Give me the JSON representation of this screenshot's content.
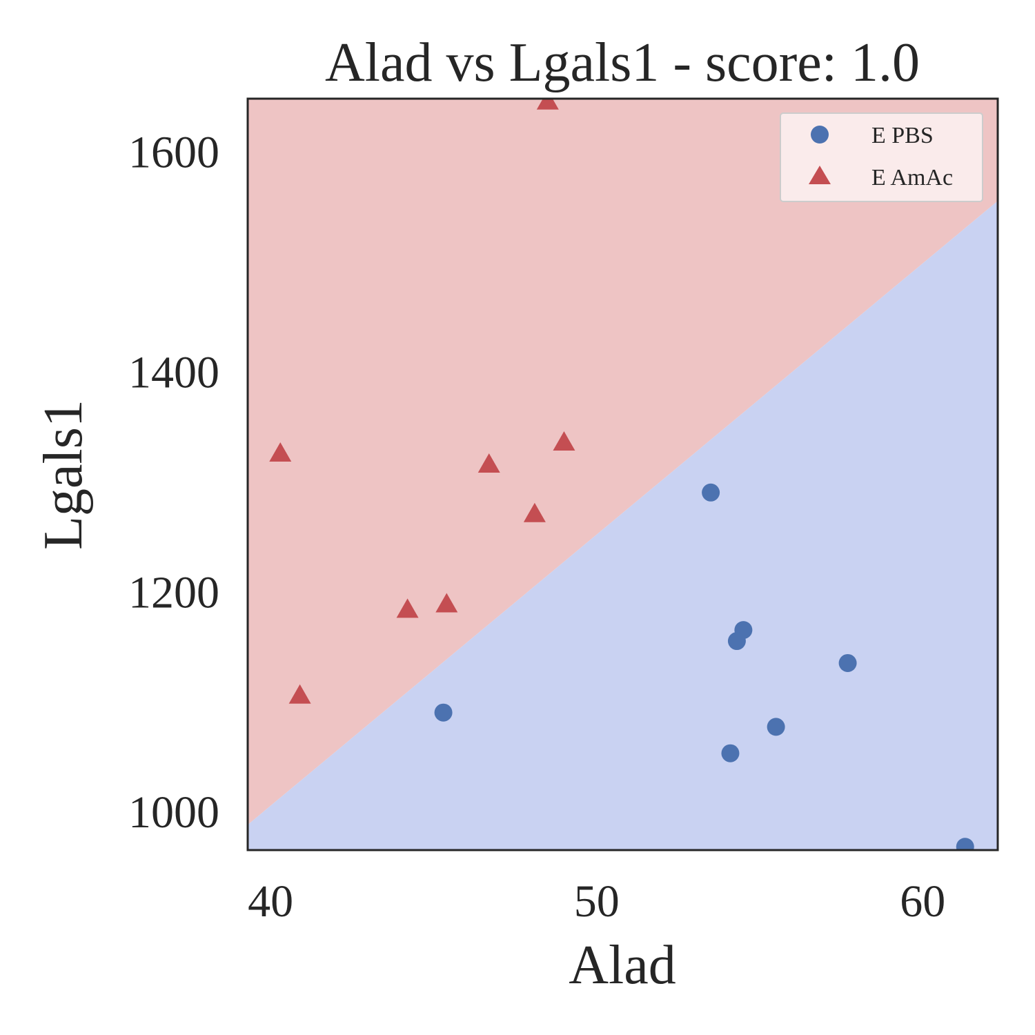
{
  "chart_data": {
    "type": "scatter",
    "title": "Alad vs Lgals1 - score: 1.0",
    "xlabel": "Alad",
    "ylabel": "Lgals1",
    "xlim": [
      39.3,
      62.3
    ],
    "ylim": [
      965,
      1648
    ],
    "x_ticks": [
      40,
      50,
      60
    ],
    "y_ticks": [
      1000,
      1200,
      1400,
      1600
    ],
    "grid": false,
    "legend_position": "top-right",
    "decision_boundary": {
      "points": [
        [
          39.3,
          988
        ],
        [
          62.3,
          1555
        ]
      ],
      "above_class": "E AmAc",
      "below_class": "E PBS",
      "above_color": "#eec4c4",
      "below_color": "#c9d2f2"
    },
    "series": [
      {
        "name": "E PBS",
        "marker": "circle",
        "color": "#4c72b0",
        "points": [
          [
            53.5,
            1290
          ],
          [
            45.3,
            1090
          ],
          [
            54.5,
            1165
          ],
          [
            54.3,
            1155
          ],
          [
            57.7,
            1135
          ],
          [
            55.5,
            1077
          ],
          [
            54.1,
            1053
          ],
          [
            61.3,
            968
          ]
        ]
      },
      {
        "name": "E AmAc",
        "marker": "triangle",
        "color": "#c44e52",
        "points": [
          [
            48.5,
            1645
          ],
          [
            40.3,
            1325
          ],
          [
            46.7,
            1315
          ],
          [
            49.0,
            1335
          ],
          [
            48.1,
            1270
          ],
          [
            44.2,
            1183
          ],
          [
            45.4,
            1188
          ],
          [
            40.9,
            1105
          ]
        ]
      }
    ]
  }
}
